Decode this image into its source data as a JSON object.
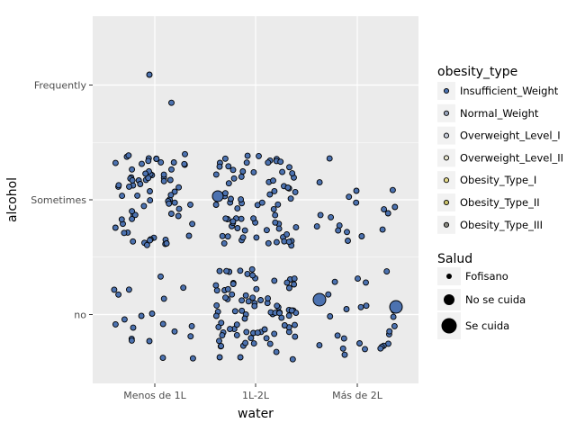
{
  "chart_data": {
    "type": "scatter",
    "title": "",
    "xlabel": "water",
    "ylabel": "alcohol",
    "categories_x": [
      "Menos de 1L",
      "1L-2L",
      "Más de 2L"
    ],
    "categories_y": [
      "no",
      "Sometimes",
      "Frequently"
    ],
    "ylim": [
      0.4,
      3.6
    ],
    "grid": true,
    "fill_color": "#4c72b0",
    "panel_color": "#ebebeb",
    "jittered_points": [
      {
        "x": "Menos de 1L",
        "y": "Frequently",
        "salud": "Fofisano"
      },
      {
        "x": "1L-2L",
        "y": "Sometimes",
        "salud": "No se cuida"
      },
      {
        "x": "1L-2L",
        "y": "no",
        "salud": "No se cuida"
      },
      {
        "x": "Más de 2L",
        "y": "no",
        "salud": "No se cuida"
      },
      {
        "x": "Más de 2L",
        "y": "no",
        "salud": "Se cuida"
      }
    ],
    "legend": {
      "obesity_type": {
        "title": "obesity_type",
        "entries": [
          "Insufficient_Weight",
          "Normal_Weight",
          "Overweight_Level_I",
          "Overweight_Level_II",
          "Obesity_Type_I",
          "Obesity_Type_II",
          "Obesity_Type_III"
        ],
        "colors": [
          "#4c72b0",
          "#9aa5bb",
          "#c9cfdc",
          "#e8e6cf",
          "#e3d98a",
          "#c9c16a",
          "#8a8a82"
        ]
      },
      "salud": {
        "title": "Salud",
        "entries": [
          "Fofisano",
          "No se cuida",
          "Se cuida"
        ]
      },
      "placement": "right"
    }
  }
}
